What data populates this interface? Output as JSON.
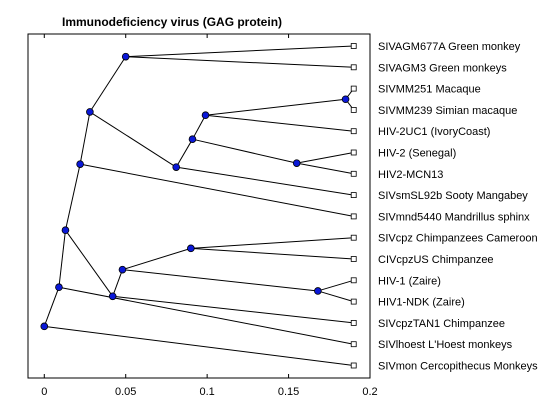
{
  "chart_data": {
    "type": "dendrogram",
    "title": "Immunodeficiency virus (GAG protein)",
    "xlabel": "",
    "ylabel": "",
    "xlim": [
      -0.01,
      0.2
    ],
    "xticks": [
      "0",
      "0.05",
      "0.1",
      "0.15",
      "0.2"
    ],
    "tick_values": [
      0,
      0.05,
      0.1,
      0.15,
      0.2
    ],
    "leaf_x": 0.19,
    "grid": false,
    "leaves": [
      "SIVAGM677A Green monkey",
      "SIVAGM3 Green monkeys",
      "SIVMM251 Macaque",
      "SIVMM239 Simian macaque",
      "HIV-2UC1 (IvoryCoast)",
      "HIV-2 (Senegal)",
      "HIV2-MCN13",
      "SIVsmSL92b Sooty Mangabey",
      "SIVmnd5440 Mandrillus sphinx",
      "SIVcpz Chimpanzees Cameroon",
      "CIVcpzUS Chimpanzee",
      "HIV-1 (Zaire)",
      "HIV1-NDK (Zaire)",
      "SIVcpzTAN1 Chimpanzee",
      "SIVlhoest L'Hoest monkeys",
      "SIVmon Cercopithecus Monkeys"
    ],
    "internal_nodes": [
      {
        "id": "n_agm",
        "x": 0.05,
        "children": [
          "leaf:0",
          "leaf:1"
        ]
      },
      {
        "id": "n_mm",
        "x": 0.185,
        "children": [
          "leaf:2",
          "leaf:3"
        ]
      },
      {
        "id": "n_mm_uc1",
        "x": 0.099,
        "children": [
          "n_mm",
          "leaf:4"
        ]
      },
      {
        "id": "n_sen_mcn",
        "x": 0.155,
        "children": [
          "leaf:5",
          "leaf:6"
        ]
      },
      {
        "id": "n_hiv2a",
        "x": 0.091,
        "children": [
          "n_mm_uc1",
          "n_sen_mcn"
        ]
      },
      {
        "id": "n_hiv2",
        "x": 0.081,
        "children": [
          "n_hiv2a",
          "leaf:7"
        ]
      },
      {
        "id": "n_agm_hiv2",
        "x": 0.028,
        "children": [
          "n_agm",
          "n_hiv2"
        ]
      },
      {
        "id": "n_upper",
        "x": 0.022,
        "children": [
          "n_agm_hiv2",
          "leaf:8"
        ]
      },
      {
        "id": "n_cpz",
        "x": 0.09,
        "children": [
          "leaf:9",
          "leaf:10"
        ]
      },
      {
        "id": "n_hiv1",
        "x": 0.168,
        "children": [
          "leaf:11",
          "leaf:12"
        ]
      },
      {
        "id": "n_cpz_hiv1",
        "x": 0.048,
        "children": [
          "n_cpz",
          "n_hiv1"
        ]
      },
      {
        "id": "n_tan1",
        "x": 0.042,
        "children": [
          "n_cpz_hiv1",
          "leaf:13"
        ]
      },
      {
        "id": "n_primate",
        "x": 0.013,
        "children": [
          "n_upper",
          "n_tan1"
        ]
      },
      {
        "id": "n_lhoest",
        "x": 0.009,
        "children": [
          "n_primate",
          "leaf:14"
        ]
      },
      {
        "id": "n_root",
        "x": 0.0,
        "children": [
          "n_lhoest",
          "leaf:15"
        ]
      }
    ],
    "colors": {
      "line": "#000000",
      "node_fill": "#0a18d8",
      "leaf_marker_fill": "#ffffff",
      "axes_border": "#000000"
    }
  }
}
